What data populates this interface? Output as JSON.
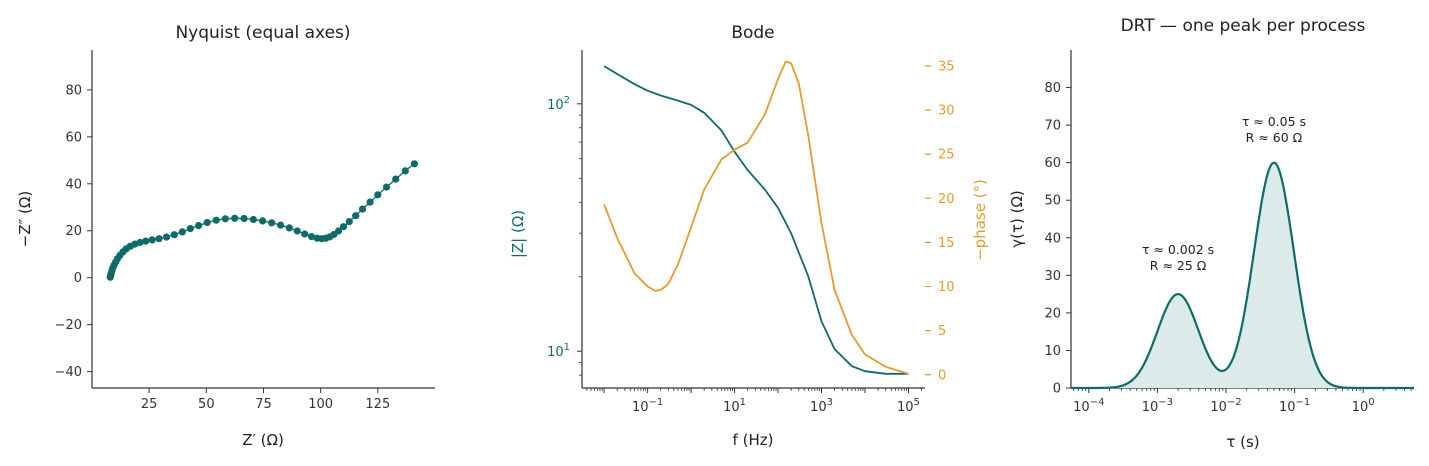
{
  "colors": {
    "teal": "#0e6b68",
    "orange": "#e69b2f",
    "fill": "#dcebea",
    "axis": "#333333"
  },
  "chart_data": [
    {
      "type": "scatter",
      "title": "Nyquist (equal axes)",
      "xlabel": "Z′ (Ω)",
      "ylabel": "−Z″ (Ω)",
      "xlim": [
        0,
        150
      ],
      "ylim": [
        -47,
        97
      ],
      "xticks": [
        25,
        50,
        75,
        100,
        125
      ],
      "xtick_labels": [
        "25",
        "50",
        "75",
        "100",
        "125"
      ],
      "yticks": [
        -40,
        -20,
        0,
        20,
        40,
        60,
        80
      ],
      "ytick_labels": [
        "−40",
        "−20",
        "0",
        "20",
        "40",
        "60",
        "80"
      ],
      "series": [
        {
          "x": [
            8.0,
            8.1,
            8.2,
            8.4,
            8.7,
            9.1,
            9.6,
            10.3,
            11.1,
            12.2,
            13.5,
            15.0,
            16.8,
            18.8,
            21.0,
            23.5,
            26.3,
            29.3,
            32.6,
            36.0,
            39.5,
            43.0,
            46.6,
            50.4,
            54.3,
            58.3,
            62.4,
            66.5,
            70.6,
            74.6,
            78.6,
            82.5,
            86.3,
            89.8,
            93.0,
            96.0,
            98.5,
            100.5,
            102.3,
            104.0,
            105.8,
            107.8,
            110.0,
            112.5,
            115.3,
            118.3,
            121.6,
            125.0,
            128.8,
            132.8,
            137.0,
            141.0
          ],
          "y": [
            0.2,
            0.6,
            1.2,
            2.0,
            3.0,
            4.1,
            5.3,
            6.6,
            8.0,
            9.5,
            11.0,
            12.3,
            13.4,
            14.3,
            15.0,
            15.6,
            16.1,
            16.6,
            17.3,
            18.3,
            19.5,
            20.9,
            22.2,
            23.5,
            24.5,
            25.1,
            25.3,
            25.2,
            24.8,
            24.2,
            23.4,
            22.4,
            21.2,
            19.9,
            18.6,
            17.5,
            16.8,
            16.6,
            16.8,
            17.4,
            18.4,
            19.9,
            21.7,
            23.9,
            26.4,
            29.2,
            32.2,
            35.3,
            38.6,
            42.0,
            45.5,
            48.5
          ]
        }
      ]
    },
    {
      "type": "line",
      "title": "Bode",
      "xlabel": "f (Hz)",
      "ylabel": "|Z| (Ω)",
      "y2label": "−phase (°)",
      "xscale": "log",
      "yscale": "log",
      "xlim": [
        0.0031,
        240000
      ],
      "ylim": [
        7.1,
        165
      ],
      "y2lim": [
        -1.5,
        36.8
      ],
      "xtick_labels": [
        "10^-1",
        "10^1",
        "10^3",
        "10^5"
      ],
      "ytick_labels": [
        "10^1",
        "10^2"
      ],
      "y2ticks": [
        0,
        5,
        10,
        15,
        20,
        25,
        30,
        35
      ],
      "y2tick_labels": [
        "0",
        "5",
        "10",
        "15",
        "20",
        "25",
        "30",
        "35"
      ],
      "series": [
        {
          "name": "|Z|",
          "axis": "left",
          "color": "#0e6b68",
          "x": [
            0.01,
            0.02,
            0.05,
            0.1,
            0.2,
            0.5,
            1,
            2,
            5,
            10,
            20,
            50,
            100,
            200,
            500,
            1000,
            2000,
            5000,
            10000,
            30000,
            100000
          ],
          "y": [
            142,
            132,
            120,
            113,
            108,
            103,
            99,
            92,
            78,
            64,
            54,
            45,
            38,
            30,
            20,
            13.2,
            10.2,
            8.7,
            8.3,
            8.1,
            8.1
          ]
        },
        {
          "name": "−phase",
          "axis": "right",
          "color": "#e69b2f",
          "x": [
            0.01,
            0.02,
            0.05,
            0.1,
            0.15,
            0.2,
            0.3,
            0.5,
            1,
            2,
            5,
            10,
            20,
            50,
            100,
            150,
            200,
            300,
            500,
            1000,
            2000,
            5000,
            10000,
            30000,
            100000
          ],
          "y": [
            19.3,
            15.5,
            11.5,
            10.0,
            9.5,
            9.6,
            10.3,
            12.5,
            16.7,
            21.0,
            24.4,
            25.5,
            26.3,
            29.5,
            33.5,
            35.5,
            35.3,
            33.0,
            27.0,
            17.2,
            9.6,
            4.5,
            2.3,
            0.9,
            0.1
          ]
        }
      ]
    },
    {
      "type": "area",
      "title": "DRT — one peak per process",
      "xlabel": "τ (s)",
      "ylabel": "γ(τ)  (Ω)",
      "xscale": "log",
      "xlim": [
        5.5e-05,
        5.5
      ],
      "ylim": [
        0,
        90
      ],
      "xtick_labels": [
        "10^-4",
        "10^-3",
        "10^-2",
        "10^-1",
        "10^0"
      ],
      "yticks": [
        0,
        10,
        20,
        30,
        40,
        50,
        60,
        70,
        80
      ],
      "ytick_labels": [
        "0",
        "10",
        "20",
        "30",
        "40",
        "50",
        "60",
        "70",
        "80"
      ],
      "series": [
        {
          "components": [
            {
              "center": 0.002,
              "height": 25,
              "sigma_decades": 0.3
            },
            {
              "center": 0.05,
              "height": 60,
              "sigma_decades": 0.29
            }
          ]
        }
      ],
      "annotations": [
        {
          "line1": "τ ≈ 0.002 s",
          "line2": "R ≈ 25 Ω",
          "x": 0.002,
          "y": 32
        },
        {
          "line1": "τ ≈ 0.05 s",
          "line2": "R ≈ 60 Ω",
          "x": 0.05,
          "y": 66
        }
      ]
    }
  ]
}
